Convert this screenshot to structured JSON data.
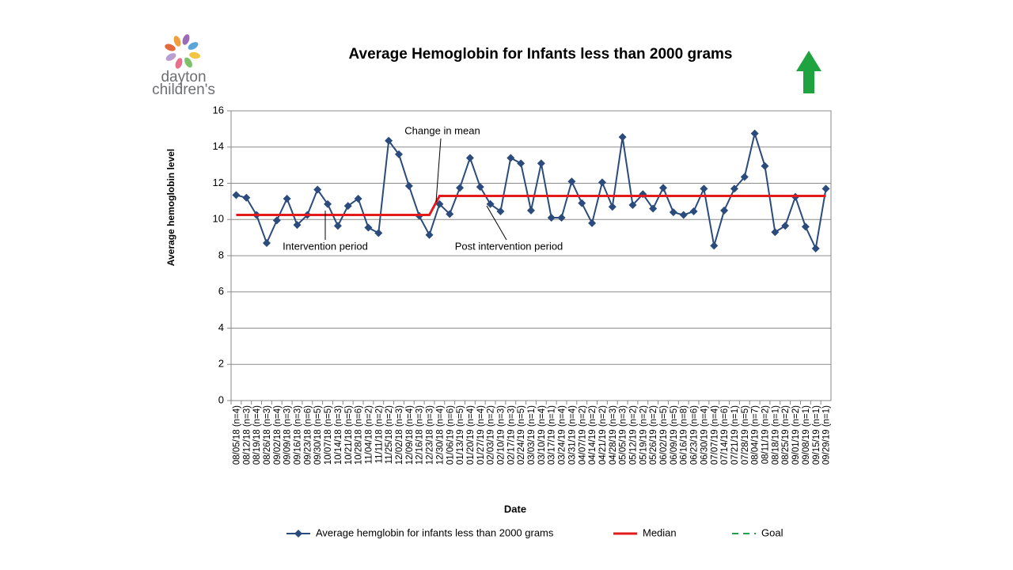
{
  "logo_text": [
    "dayton",
    "children's"
  ],
  "chart_data": {
    "type": "line",
    "title": "Average Hemoglobin for Infants less than 2000 grams",
    "y_label": "Average hemoglobin level",
    "x_label": "Date",
    "annotations": [
      "Change in mean",
      "Intervention period",
      "Post intervention period"
    ],
    "categories": [
      "08/05/18 (n=4)",
      "08/12/18 (n=3)",
      "08/19/18 (n=4)",
      "08/26/18 (n=3)",
      "09/02/18 (n=4)",
      "09/09/18 (n=3)",
      "09/16/18 (n=3)",
      "09/23/18 (n=6)",
      "09/30/18 (n=5)",
      "10/07/18 (n=5)",
      "10/14/18 (n=3)",
      "10/21/18 (n=5)",
      "10/28/18 (n=6)",
      "11/04/18 (n=2)",
      "11/11/18 (n=2)",
      "11/25/18 (n=2)",
      "12/02/18 (n=3)",
      "12/09/18 (n=4)",
      "12/16/18 (n=3)",
      "12/23/18 (n=3)",
      "12/30/18 (n=4)",
      "01/06/19 (n=6)",
      "01/13/19 (n=5)",
      "01/20/19 (n=4)",
      "01/27/19 (n=4)",
      "02/03/19 (n=2)",
      "02/10/19 (n=3)",
      "02/17/19 (n=3)",
      "02/24/19 (n=5)",
      "03/03/19 (n=1)",
      "03/10/19 (n=4)",
      "03/17/19 (n=1)",
      "03/24/19 (n=4)",
      "03/31/19 (n=4)",
      "04/07/19 (n=2)",
      "04/14/19 (n=2)",
      "04/21/19 (n=2)",
      "04/28/19 (n=3)",
      "05/05/19 (n=3)",
      "05/12/19 (n=2)",
      "05/19/19 (n=2)",
      "05/26/19 (n=2)",
      "06/02/19 (n=5)",
      "06/09/19 (n=5)",
      "06/16/19 (n=8)",
      "06/23/19 (n=6)",
      "06/30/19 (n=4)",
      "07/07/19 (n=4)",
      "07/14/19 (n=6)",
      "07/21/19 (n=1)",
      "07/28/19 (n=5)",
      "08/04/19 (n=7)",
      "08/11/19 (n=2)",
      "08/18/19 (n=1)",
      "08/25/19 (n=2)",
      "09/01/19 (n=2)",
      "09/08/19 (n=1)",
      "09/15/19 (n=1)",
      "09/29/19 (n=1)"
    ],
    "series": [
      {
        "name": "Average hemglobin for infants less than 2000 grams",
        "color": "#2a4b7c",
        "marker": "diamond",
        "values": [
          11.35,
          11.2,
          10.25,
          8.7,
          9.95,
          11.15,
          9.7,
          10.25,
          11.65,
          10.85,
          9.65,
          10.75,
          11.15,
          9.55,
          9.25,
          14.35,
          13.6,
          11.85,
          10.2,
          9.15,
          10.85,
          10.3,
          11.75,
          13.4,
          11.8,
          10.85,
          10.45,
          13.4,
          13.1,
          10.5,
          13.1,
          10.1,
          10.1,
          12.1,
          10.9,
          9.8,
          12.05,
          10.7,
          14.55,
          10.8,
          11.4,
          10.6,
          11.75,
          10.4,
          10.25,
          10.45,
          11.7,
          8.55,
          10.5,
          11.7,
          12.35,
          14.75,
          12.95,
          9.3,
          9.65,
          11.25,
          9.6,
          8.4,
          11.7
        ]
      },
      {
        "name": "Median",
        "color": "#e3191b",
        "values": [
          10.25,
          10.25,
          10.25,
          10.25,
          10.25,
          10.25,
          10.25,
          10.25,
          10.25,
          10.25,
          10.25,
          10.25,
          10.25,
          10.25,
          10.25,
          10.25,
          10.25,
          10.25,
          10.25,
          10.25,
          11.3,
          11.3,
          11.3,
          11.3,
          11.3,
          11.3,
          11.3,
          11.3,
          11.3,
          11.3,
          11.3,
          11.3,
          11.3,
          11.3,
          11.3,
          11.3,
          11.3,
          11.3,
          11.3,
          11.3,
          11.3,
          11.3,
          11.3,
          11.3,
          11.3,
          11.3,
          11.3,
          11.3,
          11.3,
          11.3,
          11.3,
          11.3,
          11.3,
          11.3,
          11.3,
          11.3,
          11.3,
          11.3,
          11.3
        ]
      },
      {
        "name": "Goal",
        "color": "#1aa34a",
        "dashed": true,
        "values": [
          null,
          null,
          null,
          null,
          null,
          null,
          null,
          null,
          null,
          null,
          null,
          null,
          null,
          null,
          null,
          null,
          null,
          null,
          null,
          null,
          null,
          null,
          null,
          null,
          null,
          null,
          null,
          null,
          null,
          null,
          null,
          null,
          null,
          null,
          null,
          null,
          null,
          null,
          null,
          null,
          null,
          null,
          null,
          null,
          null,
          null,
          null,
          null,
          null,
          null,
          null,
          null,
          null,
          null,
          null,
          null,
          null,
          null,
          null
        ]
      }
    ],
    "ylim": [
      0,
      16
    ],
    "yticks": [
      0,
      2,
      4,
      6,
      8,
      10,
      12,
      14,
      16
    ],
    "grid": true,
    "legend": "bottom"
  }
}
